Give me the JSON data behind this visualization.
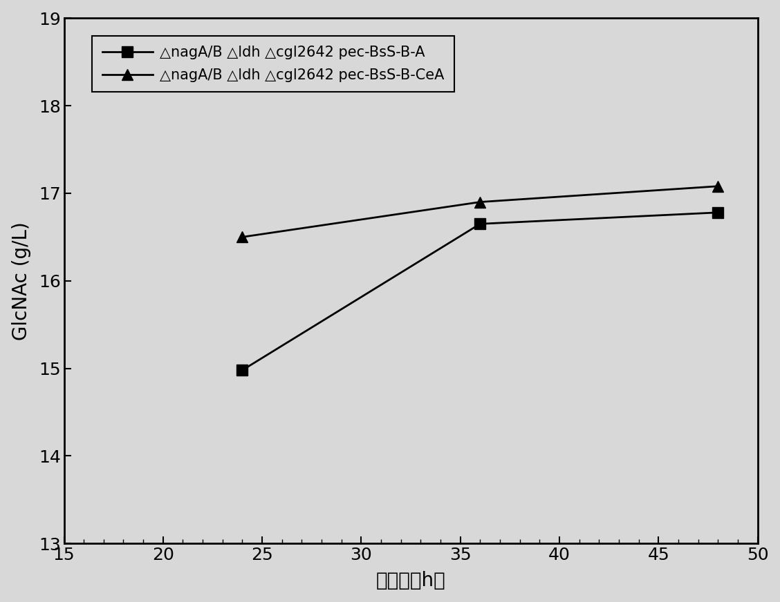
{
  "series1": {
    "x": [
      24,
      36,
      48
    ],
    "y": [
      14.98,
      16.65,
      16.78
    ],
    "label": "△nagA/B △ldh △cgl2642 pec-BsS-B-A",
    "marker": "s",
    "color": "#000000"
  },
  "series2": {
    "x": [
      24,
      36,
      48
    ],
    "y": [
      16.5,
      16.9,
      17.08
    ],
    "label": "△nagA/B △ldh △cgl2642 pec-BsS-B-CeA",
    "marker": "^",
    "color": "#000000"
  },
  "xlim": [
    15,
    50
  ],
  "ylim": [
    13,
    19
  ],
  "xticks": [
    15,
    20,
    25,
    30,
    35,
    40,
    45,
    50
  ],
  "yticks": [
    13,
    14,
    15,
    16,
    17,
    18,
    19
  ],
  "xlabel": "时间　（h）",
  "ylabel": "GlcNAc (g/L)",
  "bg_color": "#d8d8d8",
  "plot_bg_color": "#d8d8d8",
  "tick_fontsize": 18,
  "label_fontsize": 20,
  "legend_fontsize": 15,
  "linewidth": 2.0,
  "markersize": 11
}
